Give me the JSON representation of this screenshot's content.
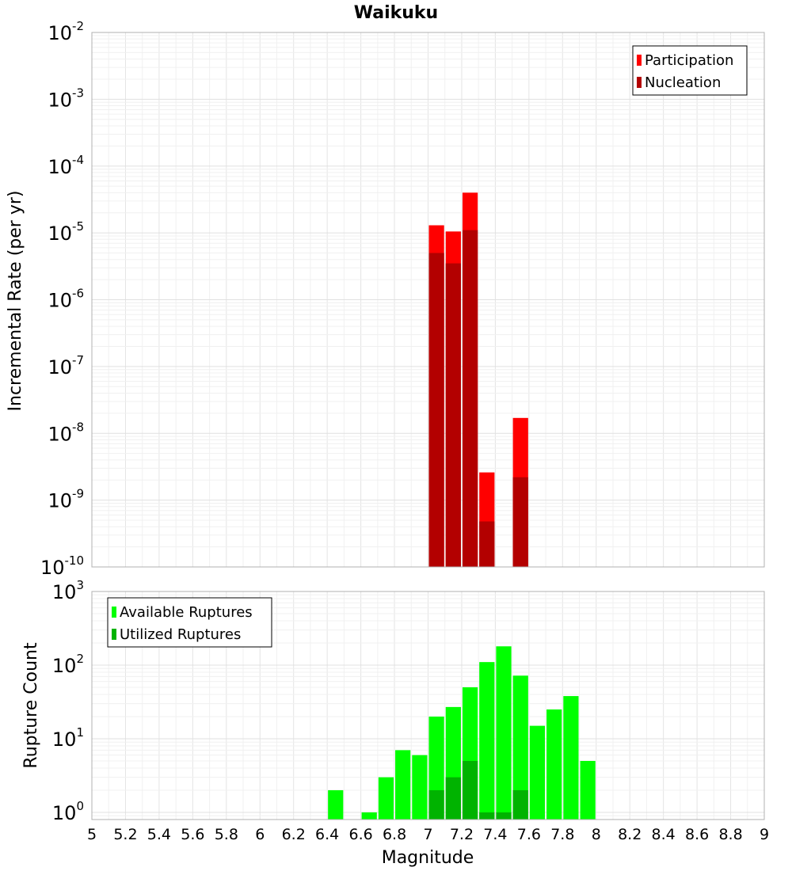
{
  "chart_data": [
    {
      "type": "bar",
      "title": "Waikuku",
      "ylabel": "Incremental Rate (per yr)",
      "yscale": "log",
      "ylim": [
        1e-10,
        0.01
      ],
      "ytick_exponents": [
        "-10",
        "-9",
        "-8",
        "-7",
        "-6",
        "-5",
        "-4",
        "-3",
        "-2"
      ],
      "xlim": [
        5,
        9
      ],
      "bin_width": 0.1,
      "grid": true,
      "legend_position": "top-right",
      "series": [
        {
          "name": "Participation",
          "color": "#ff0000",
          "points": [
            [
              7.05,
              1.3e-05
            ],
            [
              7.15,
              1.05e-05
            ],
            [
              7.25,
              4e-05
            ],
            [
              7.35,
              2.6e-09
            ],
            [
              7.55,
              1.7e-08
            ]
          ]
        },
        {
          "name": "Nucleation",
          "color": "#b30000",
          "points": [
            [
              7.05,
              5e-06
            ],
            [
              7.15,
              3.5e-06
            ],
            [
              7.25,
              1.1e-05
            ],
            [
              7.35,
              4.8e-10
            ],
            [
              7.55,
              2.2e-09
            ]
          ]
        }
      ]
    },
    {
      "type": "bar",
      "xlabel": "Magnitude",
      "ylabel": "Rupture Count",
      "yscale": "log",
      "ylim": [
        0.8,
        1000
      ],
      "ytick_exponents": [
        "0",
        "1",
        "2",
        "3"
      ],
      "xlim": [
        5,
        9
      ],
      "xticks": [
        "5",
        "5.2",
        "5.4",
        "5.6",
        "5.8",
        "6",
        "6.2",
        "6.4",
        "6.6",
        "6.8",
        "7",
        "7.2",
        "7.4",
        "7.6",
        "7.8",
        "8",
        "8.2",
        "8.4",
        "8.6",
        "8.8",
        "9"
      ],
      "bin_width": 0.1,
      "grid": true,
      "legend_position": "top-left",
      "series": [
        {
          "name": "Available Ruptures",
          "color": "#00ff00",
          "points": [
            [
              6.45,
              2
            ],
            [
              6.65,
              1
            ],
            [
              6.75,
              3
            ],
            [
              6.85,
              7
            ],
            [
              6.95,
              6
            ],
            [
              7.05,
              20
            ],
            [
              7.15,
              27
            ],
            [
              7.25,
              50
            ],
            [
              7.35,
              110
            ],
            [
              7.45,
              180
            ],
            [
              7.55,
              72
            ],
            [
              7.65,
              15
            ],
            [
              7.75,
              25
            ],
            [
              7.85,
              38
            ],
            [
              7.95,
              5
            ]
          ]
        },
        {
          "name": "Utilized Ruptures",
          "color": "#00b300",
          "points": [
            [
              7.05,
              2
            ],
            [
              7.15,
              3
            ],
            [
              7.25,
              5
            ],
            [
              7.35,
              1
            ],
            [
              7.45,
              1
            ],
            [
              7.55,
              2
            ]
          ]
        }
      ]
    }
  ]
}
